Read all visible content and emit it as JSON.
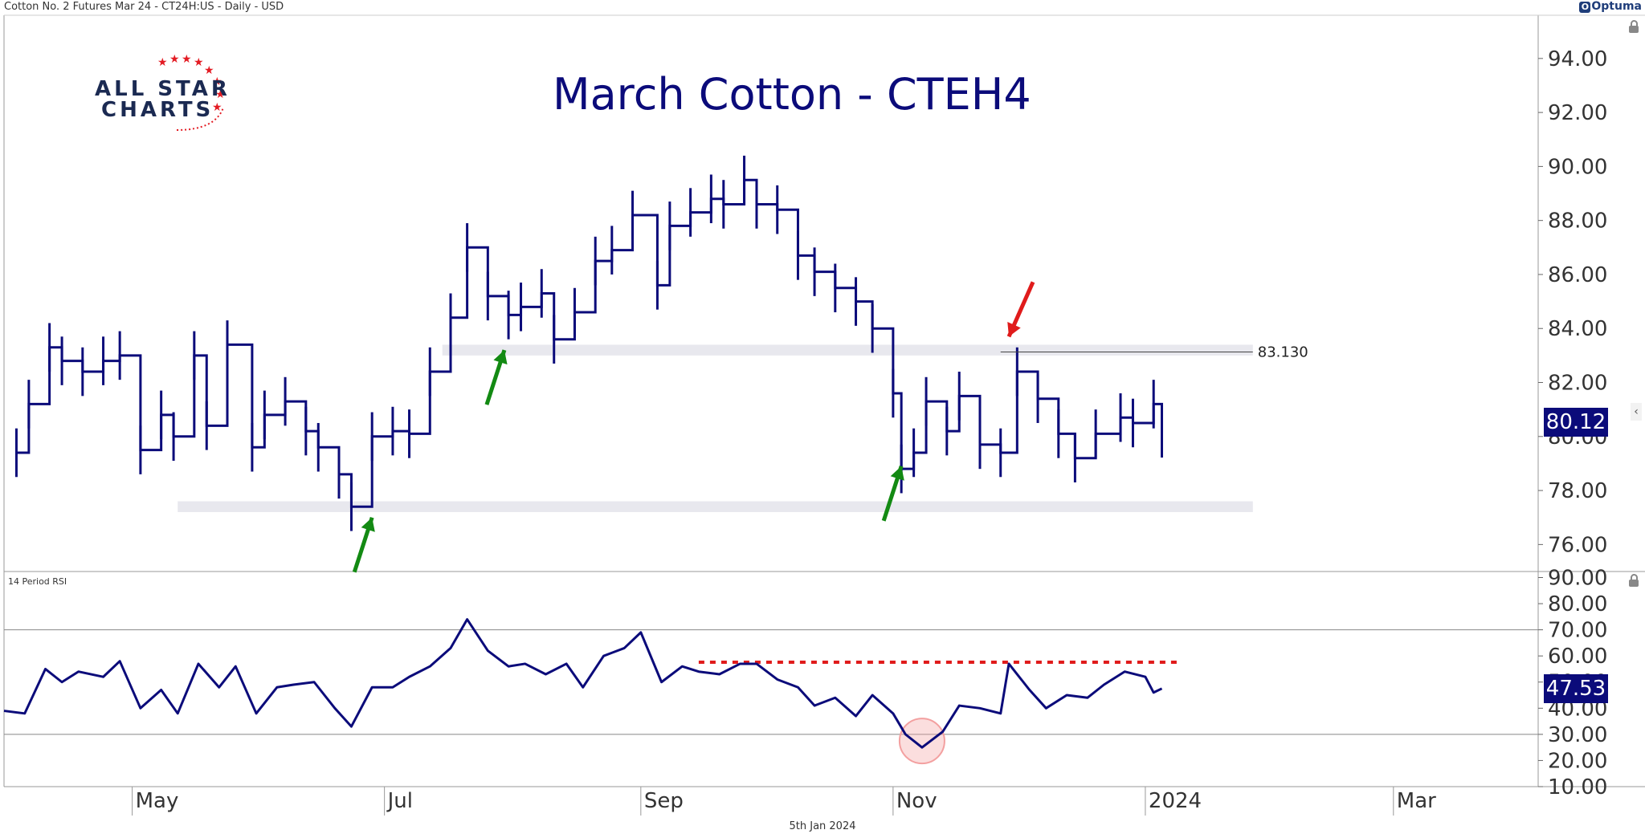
{
  "header": {
    "instrument": "Cotton No. 2 Futures Mar 24 - CT24H:US - Daily - USD",
    "brand": "Optuma"
  },
  "logo": {
    "line1": "ALL STAR",
    "line2": "CHARTS"
  },
  "footer": {
    "date": "5th Jan 2024"
  },
  "colors": {
    "price_line": "#0b0b7a",
    "support_zone": "#e8e8ee",
    "green_arrow": "#138a13",
    "red_arrow": "#e01b1b",
    "rsi_dashed": "#e01b1b",
    "highlight_circle": "#f3a0a0"
  },
  "chart_data": [
    {
      "type": "line",
      "title": "March Cotton - CTEH4",
      "price_tag": "80.12",
      "resistance_label": "83.130",
      "ylim": [
        75.0,
        95.6
      ],
      "y_ticks": [
        "94.00",
        "92.00",
        "90.00",
        "88.00",
        "86.00",
        "84.00",
        "82.00",
        "80.00",
        "78.00",
        "76.00"
      ],
      "x_ticks": [
        "May",
        "Jul",
        "Sep",
        "Nov",
        "2024",
        "Mar"
      ],
      "x_range": [
        "2023-03-31",
        "2024-04-05"
      ],
      "grid": false,
      "zones": [
        {
          "y_low": 83.0,
          "y_high": 83.4,
          "x_from": "2023-07-15",
          "x_to": "2024-01-27"
        },
        {
          "y_low": 77.2,
          "y_high": 77.6,
          "x_from": "2023-05-12",
          "x_to": "2024-01-27"
        }
      ],
      "resistance": {
        "y": 83.13,
        "x_from": "2023-11-27",
        "x_to": "2024-01-27"
      },
      "arrows": [
        {
          "color": "green",
          "x": "2023-06-28",
          "y": 77.0,
          "direction": "up"
        },
        {
          "color": "green",
          "x": "2023-07-30",
          "y": 83.2,
          "direction": "up"
        },
        {
          "color": "green",
          "x": "2023-11-03",
          "y": 78.9,
          "direction": "up"
        },
        {
          "color": "red",
          "x": "2023-11-29",
          "y": 83.7,
          "direction": "down"
        }
      ],
      "series": [
        {
          "x": [
            "2023-04-03",
            "2023-04-06",
            "2023-04-11",
            "2023-04-14",
            "2023-04-19",
            "2023-04-24",
            "2023-04-28",
            "2023-05-03",
            "2023-05-08",
            "2023-05-11",
            "2023-05-16",
            "2023-05-19",
            "2023-05-24",
            "2023-05-30",
            "2023-06-02",
            "2023-06-07",
            "2023-06-12",
            "2023-06-15",
            "2023-06-20",
            "2023-06-23",
            "2023-06-28",
            "2023-07-03",
            "2023-07-07",
            "2023-07-12",
            "2023-07-17",
            "2023-07-21",
            "2023-07-26",
            "2023-07-31",
            "2023-08-03",
            "2023-08-08",
            "2023-08-11",
            "2023-08-16",
            "2023-08-21",
            "2023-08-25",
            "2023-08-30",
            "2023-09-05",
            "2023-09-08",
            "2023-09-13",
            "2023-09-18",
            "2023-09-21",
            "2023-09-26",
            "2023-09-29",
            "2023-10-04",
            "2023-10-09",
            "2023-10-13",
            "2023-10-18",
            "2023-10-23",
            "2023-10-27",
            "2023-11-01",
            "2023-11-03",
            "2023-11-06",
            "2023-11-09",
            "2023-11-14",
            "2023-11-17",
            "2023-11-22",
            "2023-11-27",
            "2023-12-01",
            "2023-12-06",
            "2023-12-11",
            "2023-12-15",
            "2023-12-20",
            "2023-12-26",
            "2023-12-29",
            "2024-01-03",
            "2024-01-05"
          ],
          "values": [
            79.4,
            81.2,
            83.3,
            82.8,
            82.4,
            82.8,
            83.0,
            79.5,
            80.8,
            80.0,
            83.0,
            80.4,
            83.4,
            79.6,
            80.8,
            81.3,
            80.2,
            79.6,
            78.6,
            77.4,
            80.0,
            80.2,
            80.1,
            82.4,
            84.4,
            87.0,
            85.2,
            84.5,
            84.8,
            85.3,
            83.6,
            84.6,
            86.5,
            86.9,
            88.2,
            85.6,
            87.8,
            88.3,
            88.8,
            88.6,
            89.5,
            88.6,
            88.4,
            86.7,
            86.1,
            85.5,
            85.0,
            84.0,
            81.6,
            78.8,
            79.4,
            81.3,
            80.2,
            81.5,
            79.7,
            79.4,
            82.4,
            81.4,
            80.1,
            79.2,
            80.1,
            80.7,
            80.5,
            81.2,
            80.12
          ]
        }
      ]
    },
    {
      "type": "line",
      "title": "14 Period RSI",
      "rsi_tag": "47.53",
      "ylim": [
        10,
        92.3
      ],
      "y_ticks": [
        "90.00",
        "80.00",
        "70.00",
        "60.00",
        "50.00",
        "40.00",
        "30.00",
        "20.00",
        "10.00"
      ],
      "reference_lines": [
        70,
        30
      ],
      "dashed_level": {
        "y": 57.6,
        "x_from": "2023-09-15",
        "x_to": "2024-01-09"
      },
      "circle": {
        "x": "2023-11-08",
        "y": 25
      },
      "series": [
        {
          "x": [
            "2023-03-31",
            "2023-04-05",
            "2023-04-10",
            "2023-04-14",
            "2023-04-18",
            "2023-04-24",
            "2023-04-28",
            "2023-05-03",
            "2023-05-08",
            "2023-05-12",
            "2023-05-17",
            "2023-05-22",
            "2023-05-26",
            "2023-05-31",
            "2023-06-05",
            "2023-06-09",
            "2023-06-14",
            "2023-06-19",
            "2023-06-23",
            "2023-06-28",
            "2023-07-03",
            "2023-07-07",
            "2023-07-12",
            "2023-07-17",
            "2023-07-21",
            "2023-07-26",
            "2023-07-31",
            "2023-08-04",
            "2023-08-09",
            "2023-08-14",
            "2023-08-18",
            "2023-08-23",
            "2023-08-28",
            "2023-09-01",
            "2023-09-06",
            "2023-09-11",
            "2023-09-15",
            "2023-09-20",
            "2023-09-25",
            "2023-09-29",
            "2023-10-04",
            "2023-10-09",
            "2023-10-13",
            "2023-10-18",
            "2023-10-23",
            "2023-10-27",
            "2023-11-01",
            "2023-11-04",
            "2023-11-08",
            "2023-11-13",
            "2023-11-17",
            "2023-11-22",
            "2023-11-27",
            "2023-11-29",
            "2023-12-04",
            "2023-12-08",
            "2023-12-13",
            "2023-12-18",
            "2023-12-22",
            "2023-12-27",
            "2024-01-01",
            "2024-01-03",
            "2024-01-05"
          ],
          "values": [
            39,
            38,
            55,
            50,
            54,
            52,
            58,
            40,
            47,
            38,
            57,
            48,
            56,
            38,
            48,
            49,
            50,
            40,
            33,
            48,
            48,
            52,
            56,
            63,
            74,
            62,
            56,
            57,
            53,
            57,
            48,
            60,
            63,
            69,
            50,
            56,
            54,
            53,
            57,
            57,
            51,
            48,
            41,
            44,
            37,
            45,
            38,
            30,
            25,
            31,
            41,
            40,
            38,
            57,
            47,
            40,
            45,
            44,
            49,
            54,
            52,
            46,
            47.53
          ]
        }
      ]
    }
  ]
}
